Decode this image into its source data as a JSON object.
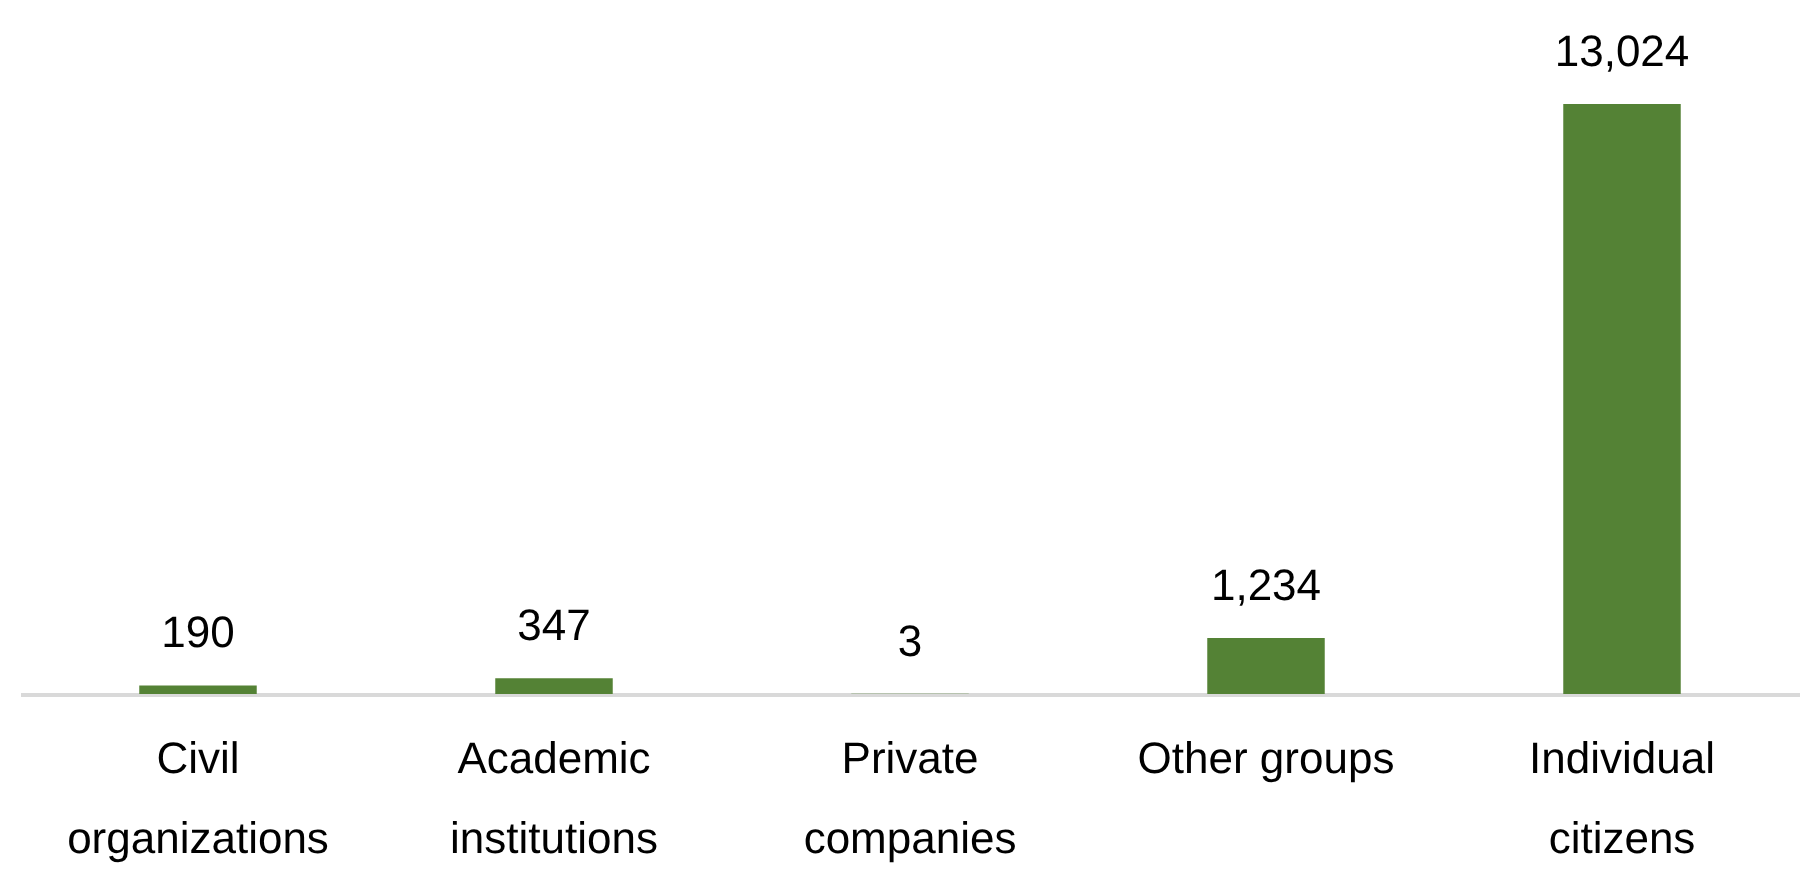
{
  "chart_data": {
    "type": "bar",
    "categories": [
      "Civil organizations",
      "Academic institutions",
      "Private companies",
      "Other groups",
      "Individual citizens"
    ],
    "values": [
      190,
      347,
      3,
      1234,
      13024
    ],
    "color": "#548235",
    "value_labels": [
      "190",
      "347",
      "3",
      "1,234",
      "13,024"
    ],
    "tick_labels": "x"
  }
}
